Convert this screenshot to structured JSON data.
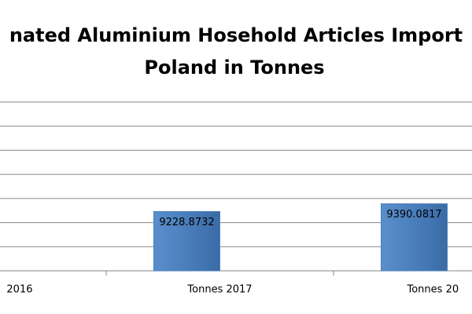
{
  "chart_data": {
    "type": "bar",
    "title": [
      "nated Aluminium Hosehold Articles Import",
      "Poland in Tonnes"
    ],
    "categories": [
      "2016",
      "Tonnes 2017",
      "Tonnes 20"
    ],
    "values": [
      null,
      9228.8732,
      9390.0817
    ],
    "color": "#4a7ebb",
    "ylim": [
      8000,
      11500
    ],
    "yticks": [
      8000,
      8500,
      9000,
      9500,
      10000,
      10500,
      11000,
      11500
    ],
    "grid": true
  }
}
